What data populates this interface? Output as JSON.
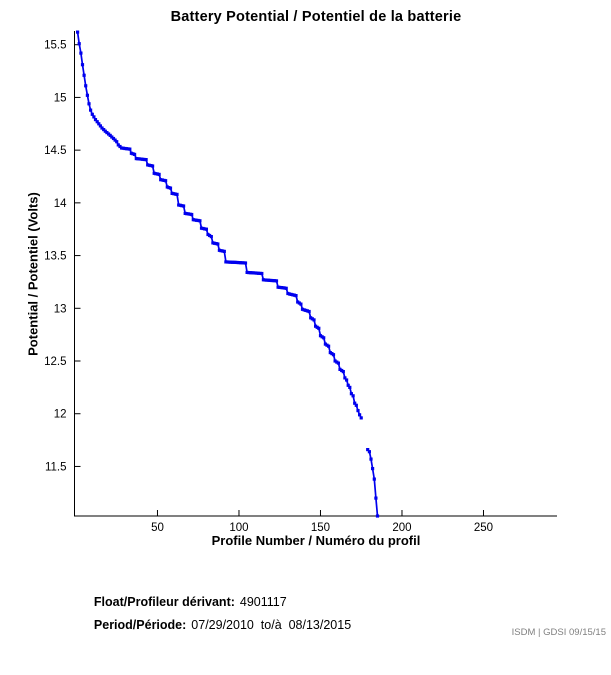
{
  "chart_data": {
    "type": "line",
    "title": "Battery Potential / Potentiel de la batterie",
    "xlabel": "Profile Number / Numéro du profil",
    "ylabel": "Potential / Potentiel (Volts)",
    "xlim": [
      -0.9,
      295.1
    ],
    "ylim": [
      11.03,
      15.63
    ],
    "xticks": [
      50,
      100,
      150,
      200,
      250
    ],
    "yticks": [
      11.5,
      12,
      12.5,
      13,
      13.5,
      14,
      14.5,
      15,
      15.5
    ],
    "grid": false,
    "legend": null,
    "line_color": "#0000EE",
    "axis_color": "#000000",
    "marker": "square",
    "series": [
      {
        "name": "Battery potential (Volts) vs profile number",
        "points": [
          [
            1,
            15.62
          ],
          [
            2,
            15.51
          ],
          [
            3,
            15.42
          ],
          [
            4,
            15.31
          ],
          [
            5,
            15.21
          ],
          [
            6,
            15.11
          ],
          [
            7,
            15.02
          ],
          [
            8,
            14.94
          ],
          [
            9,
            14.88
          ],
          [
            10,
            14.84
          ],
          [
            12,
            14.79
          ],
          [
            14,
            14.75
          ],
          [
            16,
            14.71
          ],
          [
            18,
            14.68
          ],
          [
            21,
            14.64
          ],
          [
            23,
            14.61
          ],
          [
            25,
            14.58
          ],
          [
            26,
            14.55
          ],
          [
            28,
            14.52
          ],
          [
            33,
            14.51
          ],
          [
            34,
            14.47
          ],
          [
            36,
            14.46
          ],
          [
            37,
            14.42
          ],
          [
            43,
            14.41
          ],
          [
            44,
            14.36
          ],
          [
            47,
            14.35
          ],
          [
            48,
            14.28
          ],
          [
            51,
            14.27
          ],
          [
            52,
            14.22
          ],
          [
            55,
            14.21
          ],
          [
            56,
            14.15
          ],
          [
            58,
            14.14
          ],
          [
            59,
            14.09
          ],
          [
            62,
            14.08
          ],
          [
            63,
            13.98
          ],
          [
            66,
            13.97
          ],
          [
            67,
            13.9
          ],
          [
            71,
            13.89
          ],
          [
            72,
            13.84
          ],
          [
            76,
            13.83
          ],
          [
            77,
            13.76
          ],
          [
            80,
            13.75
          ],
          [
            81,
            13.7
          ],
          [
            83,
            13.68
          ],
          [
            84,
            13.62
          ],
          [
            87,
            13.61
          ],
          [
            88,
            13.55
          ],
          [
            91,
            13.54
          ],
          [
            92,
            13.44
          ],
          [
            104,
            13.43
          ],
          [
            105,
            13.34
          ],
          [
            114,
            13.33
          ],
          [
            115,
            13.27
          ],
          [
            123,
            13.26
          ],
          [
            124,
            13.2
          ],
          [
            129,
            13.19
          ],
          [
            130,
            13.14
          ],
          [
            135,
            13.12
          ],
          [
            136,
            13.06
          ],
          [
            138,
            13.04
          ],
          [
            139,
            12.99
          ],
          [
            143,
            12.97
          ],
          [
            144,
            12.91
          ],
          [
            146,
            12.89
          ],
          [
            147,
            12.83
          ],
          [
            149,
            12.81
          ],
          [
            150,
            12.74
          ],
          [
            152,
            12.72
          ],
          [
            153,
            12.66
          ],
          [
            155,
            12.64
          ],
          [
            156,
            12.58
          ],
          [
            158,
            12.56
          ],
          [
            159,
            12.5
          ],
          [
            161,
            12.48
          ],
          [
            162,
            12.42
          ],
          [
            164,
            12.4
          ],
          [
            165,
            12.34
          ],
          [
            166,
            12.32
          ],
          [
            167,
            12.27
          ],
          [
            168,
            12.25
          ],
          [
            169,
            12.19
          ],
          [
            170,
            12.17
          ],
          [
            171,
            12.1
          ],
          [
            172,
            12.08
          ],
          [
            173,
            12.03
          ],
          [
            174,
            11.99
          ],
          [
            175,
            11.96
          ],
          [
            176,
            null
          ],
          [
            179,
            11.66
          ],
          [
            180,
            11.64
          ],
          [
            181,
            11.57
          ],
          [
            182,
            11.48
          ],
          [
            183,
            11.38
          ],
          [
            184,
            11.2
          ],
          [
            185,
            11.03
          ]
        ]
      }
    ]
  },
  "footer": {
    "float_label": "Float/Profileur dérivant:",
    "float_value": "4901117",
    "period_label": "Period/Période:",
    "period_value": "07/29/2010  to/à  08/13/2015",
    "credit": "ISDM | GDSI 09/15/15"
  }
}
